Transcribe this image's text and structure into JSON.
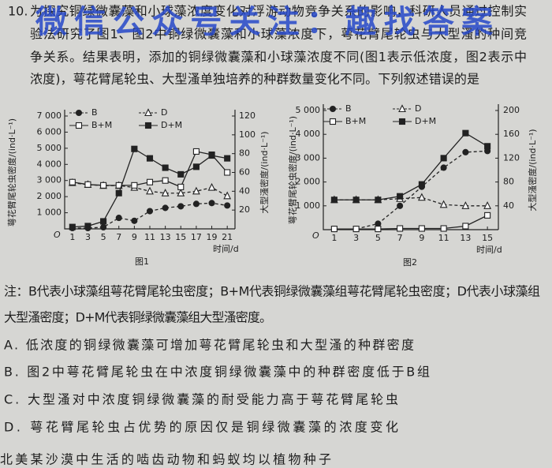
{
  "watermark": "微信公众号关注：趣找答案",
  "question": {
    "number": "10.",
    "lines": [
      "为探究铜绿微囊藻和小球藻浓度变化对浮游动物竞争关系的影响，科研人员通过控制实",
      "验法研究了图1、图2中铜绿微囊藻和小球藻浓度下，萼花臂尾轮虫与大型溞的种间竞",
      "争关系。结果表明，添加的铜绿微囊藻和小球藻浓度不同(图1表示低浓度，图2表示中",
      "浓度)，萼花臂尾轮虫、大型溞单独培养的种群数量变化不同。下列叙述错误的是"
    ]
  },
  "chart_data": [
    {
      "type": "line",
      "caption": "图1",
      "x_label": "时间/d",
      "y_label": "萼花臂尾轮虫密度/(ind·L⁻¹)",
      "y2_label": "大型溞密度/(ind·L⁻¹)",
      "origin_label": "O",
      "x": [
        1,
        3,
        5,
        7,
        9,
        11,
        13,
        15,
        17,
        19,
        21
      ],
      "xlim": [
        0,
        22
      ],
      "xticks": [
        1,
        3,
        5,
        7,
        9,
        11,
        13,
        15,
        17,
        19,
        21
      ],
      "ylim": [
        0,
        7000
      ],
      "yticks": [
        {
          "value": 1000,
          "label": "1 000"
        },
        {
          "value": 2000,
          "label": "2 000"
        },
        {
          "value": 3000,
          "label": "3 000"
        },
        {
          "value": 4000,
          "label": "4 000"
        },
        {
          "value": 5000,
          "label": "5 000"
        },
        {
          "value": 6000,
          "label": "6 000"
        },
        {
          "value": 7000,
          "label": "7 000"
        }
      ],
      "y2lim": [
        0,
        120
      ],
      "y2ticks": [
        20,
        40,
        60,
        80,
        100,
        120
      ],
      "series": [
        {
          "name": "B",
          "color": "#222222",
          "marker": "circle-filled",
          "dash": true,
          "values": [
            50,
            50,
            100,
            680,
            500,
            1100,
            1300,
            1400,
            1550,
            1600,
            1450
          ]
        },
        {
          "name": "D",
          "color": "#222222",
          "marker": "triangle-open",
          "dash": true,
          "axis": "y2",
          "values": [
            49,
            47,
            46,
            46,
            44,
            40,
            38,
            38,
            40,
            44,
            35
          ]
        },
        {
          "name": "B+M",
          "color": "#222222",
          "marker": "square-open",
          "dash": false,
          "values": [
            2900,
            2750,
            2700,
            2700,
            2700,
            2900,
            3000,
            2600,
            4800,
            4600,
            3500
          ]
        },
        {
          "name": "D+M",
          "color": "#222222",
          "marker": "square-filled",
          "dash": false,
          "axis": "y2",
          "values": [
            2,
            3,
            8,
            38,
            85,
            75,
            65,
            58,
            66,
            78,
            75
          ]
        }
      ]
    },
    {
      "type": "line",
      "caption": "图2",
      "x_label": "时间/d",
      "y_label": "萼花臂尾轮虫密度/(ind·L⁻¹)",
      "y2_label": "大型溞密度/(ind·L⁻¹)",
      "origin_label": "O",
      "x": [
        1,
        3,
        5,
        7,
        9,
        11,
        13,
        15
      ],
      "xlim": [
        0,
        16
      ],
      "xticks": [
        1,
        3,
        5,
        7,
        9,
        11,
        13,
        15
      ],
      "ylim": [
        0,
        5000
      ],
      "yticks": [
        {
          "value": 1000,
          "label": "1 000"
        },
        {
          "value": 2000,
          "label": "2 000"
        },
        {
          "value": 3000,
          "label": "3 000"
        },
        {
          "value": 4000,
          "label": "4 000"
        },
        {
          "value": 5000,
          "label": "5 000"
        }
      ],
      "y2lim": [
        0,
        200
      ],
      "y2ticks": [
        40,
        80,
        120,
        160,
        200
      ],
      "series": [
        {
          "name": "B",
          "color": "#222222",
          "marker": "circle-filled",
          "dash": true,
          "values": [
            30,
            30,
            250,
            1000,
            1800,
            2600,
            3250,
            3300
          ]
        },
        {
          "name": "D",
          "color": "#222222",
          "marker": "triangle-open",
          "dash": true,
          "axis": "y2",
          "values": [
            50,
            50,
            50,
            52,
            54,
            42,
            40,
            40
          ]
        },
        {
          "name": "B+M",
          "color": "#222222",
          "marker": "square-open",
          "dash": false,
          "values": [
            30,
            30,
            30,
            50,
            50,
            50,
            150,
            600
          ]
        },
        {
          "name": "D+M",
          "color": "#222222",
          "marker": "square-filled",
          "dash": false,
          "axis": "y2",
          "values": [
            50,
            50,
            50,
            56,
            76,
            120,
            162,
            140
          ]
        }
      ]
    }
  ],
  "note": {
    "lines": [
      "注：B代表小球藻组萼花臂尾轮虫密度；B+M代表铜绿微囊藻组萼花臂尾轮虫密度；D代表小球藻组",
      "大型溞密度；D+M代表铜绿微囊藻组大型溞密度。"
    ]
  },
  "options": [
    "A. 低浓度的铜绿微囊藻可增加萼花臂尾轮虫和大型溞的种群密度",
    "B. 图2中萼花臂尾轮虫在中浓度铜绿微囊藻中的种群密度低于B组",
    "C. 大型溞对中浓度铜绿微囊藻的耐受能力高于萼花臂尾轮虫",
    "D. 萼花臂尾轮虫占优势的原因仅是铜绿微囊藻的浓度变化"
  ],
  "next_question": "北美某沙漠中生活的啮齿动物和蚂蚁均以植物种子"
}
